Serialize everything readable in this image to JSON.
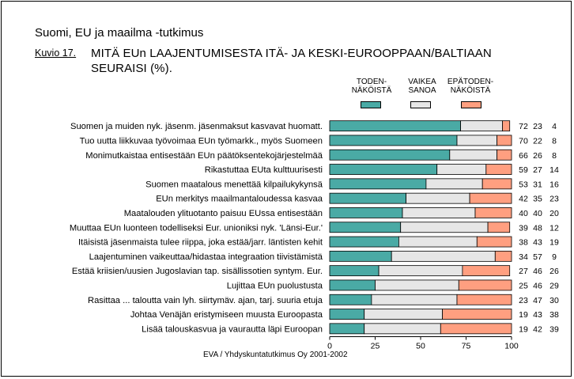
{
  "header": {
    "top": "Suomi, EU ja maailma -tutkimus",
    "figure_label": "Kuvio 17.",
    "title": "MITÄ EUn LAAJENTUMISESTA ITÄ- JA KESKI-EUROOPPAAN/BALTIAAN SEURAISI (%)."
  },
  "footer": {
    "source": "EVA / Yhdyskuntatutkimus Oy 2001-2002"
  },
  "colors": {
    "likely": "#4aaaa5",
    "cant_say": "#e6e6e6",
    "unlikely": "#ff9f80",
    "outline": "#000000"
  },
  "chart_data": {
    "type": "bar",
    "orientation": "horizontal",
    "stacked": true,
    "xlim": [
      0,
      100
    ],
    "xticks": [
      0,
      25,
      50,
      75,
      100
    ],
    "legend": {
      "position": "top",
      "entries": [
        {
          "lines": [
            "TODEN-",
            "NÄKÖISTÄ"
          ],
          "color": "#4aaaa5"
        },
        {
          "lines": [
            "VAIKEA",
            "SANOA"
          ],
          "color": "#e6e6e6"
        },
        {
          "lines": [
            "EPÄTODEN-",
            "NÄKÖISTÄ"
          ],
          "color": "#ff9f80"
        }
      ]
    },
    "categories": [
      "Suomen ja muiden nyk. jäsenm. jäsenmaksut kasvavat huomatt.",
      "Tuo uutta liikkuvaa työvoimaa EUn työmarkk., myös Suomeen",
      "Monimutkaistaa entisestään EUn päätöksentekojärjestelmää",
      "Rikastuttaa EUta kulttuurisesti",
      "Suomen maatalous menettää kilpailukykynsä",
      "EUn merkitys maailmantaloudessa kasvaa",
      "Maatalouden ylituotanto paisuu EUssa entisestään",
      "Muuttaa EUn luonteen todelliseksi Eur. unioniksi nyk. 'Länsi-Eur.'",
      "Itäisistä jäsenmaista tulee riippa, joka estää/jarr. läntisten kehit",
      "Laajentuminen vaikeuttaa/hidastaa integraation tiivistämistä",
      "Estää kriisien/uusien Jugoslavian tap. sisällissotien syntym. Eur.",
      "Lujittaa EUn puolustusta",
      "Rasittaa ... taloutta vain lyh. siirtymäv. ajan, tarj. suuria etuja",
      "Johtaa Venäjän eristymiseen muusta Euroopasta",
      "Lisää talouskasvua ja vaurautta läpi Euroopan"
    ],
    "series": [
      {
        "name": "TODENNÄKÖISTÄ",
        "values": [
          72,
          70,
          66,
          59,
          53,
          42,
          40,
          39,
          38,
          34,
          27,
          25,
          23,
          19,
          19
        ]
      },
      {
        "name": "VAIKEA SANOA",
        "values": [
          23,
          22,
          26,
          27,
          31,
          35,
          40,
          48,
          43,
          57,
          46,
          46,
          47,
          43,
          42
        ]
      },
      {
        "name": "EPÄTODENNÄKÖISTÄ",
        "values": [
          4,
          8,
          8,
          14,
          16,
          23,
          20,
          12,
          19,
          9,
          26,
          29,
          30,
          38,
          39
        ]
      }
    ]
  }
}
